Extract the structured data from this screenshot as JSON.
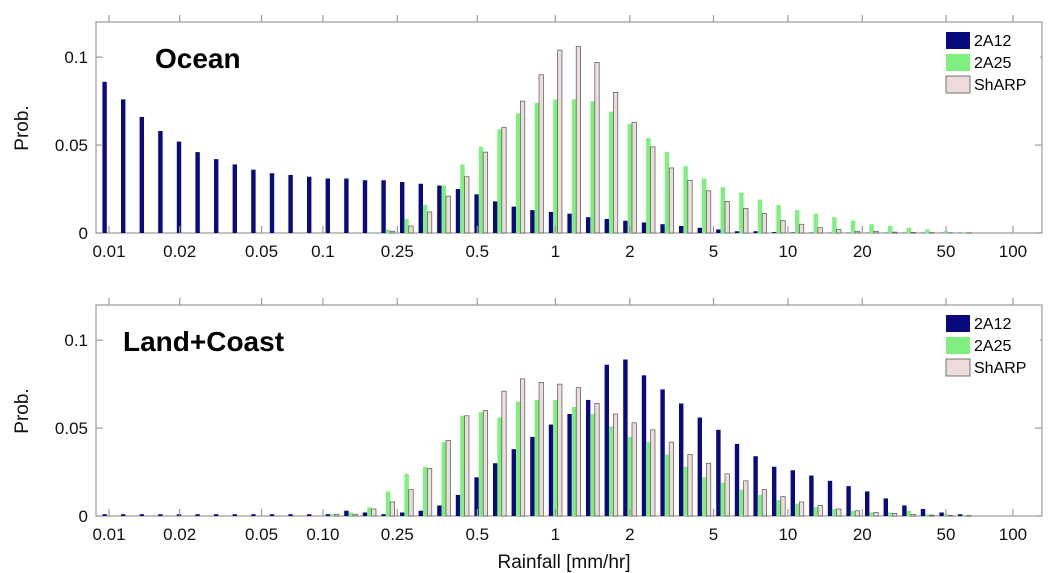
{
  "colors": {
    "2A12": "#0a0a7e",
    "2A25": "#7ff07f",
    "ShARP": "#eedcdc"
  },
  "chart_data": [
    {
      "type": "bar",
      "title": "Ocean",
      "ylabel": "Prob.",
      "xlabel": "",
      "ylim": [
        0,
        0.12
      ],
      "yticks": [
        "0",
        "0.05",
        "0.1"
      ],
      "xtick_labels": [
        "0.01",
        "0.02",
        "0.05",
        "0.1",
        "0.25",
        "0.5",
        "1",
        "2",
        "5",
        "10",
        "20",
        "50",
        "100"
      ],
      "legend": [
        "2A12",
        "2A25",
        "ShARP"
      ],
      "legend_position": "top-right",
      "series": [
        {
          "name": "2A12",
          "values": [
            0.086,
            0.076,
            0.066,
            0.058,
            0.052,
            0.046,
            0.042,
            0.039,
            0.036,
            0.034,
            0.033,
            0.032,
            0.031,
            0.031,
            0.03,
            0.03,
            0.029,
            0.028,
            0.027,
            0.025,
            0.022,
            0.018,
            0.015,
            0.013,
            0.012,
            0.011,
            0.009,
            0.008,
            0.007,
            0.006,
            0.005,
            0.004,
            0.003,
            0.002,
            0.001,
            0.001,
            0.0005,
            0.0003,
            0.0002,
            0.0001,
            0.0001,
            0.0001,
            0.0001,
            0.0001,
            0.0001,
            0.0001,
            0.0001
          ]
        },
        {
          "name": "2A25",
          "values": [
            0,
            0,
            0,
            0,
            0,
            0,
            0,
            0,
            0,
            0,
            0,
            0,
            0,
            0,
            0.0005,
            0.002,
            0.008,
            0.016,
            0.027,
            0.039,
            0.049,
            0.059,
            0.068,
            0.074,
            0.076,
            0.076,
            0.075,
            0.069,
            0.062,
            0.054,
            0.046,
            0.038,
            0.031,
            0.026,
            0.023,
            0.019,
            0.016,
            0.013,
            0.011,
            0.009,
            0.007,
            0.005,
            0.004,
            0.003,
            0.002,
            0.001,
            0.0005
          ]
        },
        {
          "name": "ShARP",
          "values": [
            0,
            0,
            0,
            0,
            0,
            0,
            0,
            0,
            0,
            0,
            0,
            0,
            0,
            0,
            0,
            0.001,
            0.004,
            0.012,
            0.021,
            0.032,
            0.046,
            0.06,
            0.075,
            0.09,
            0.104,
            0.106,
            0.097,
            0.08,
            0.063,
            0.049,
            0.037,
            0.03,
            0.024,
            0.018,
            0.014,
            0.011,
            0.007,
            0.005,
            0.003,
            0.002,
            0.001,
            0.001,
            0.0005,
            0.0003,
            0.0002,
            0.0001,
            0.0001
          ]
        }
      ]
    },
    {
      "type": "bar",
      "title": "Land+Coast",
      "ylabel": "Prob.",
      "xlabel": "Rainfall [mm/hr]",
      "ylim": [
        0,
        0.12
      ],
      "yticks": [
        "0",
        "0.05",
        "0.1"
      ],
      "xtick_labels": [
        "0.01",
        "0.02",
        "0.05",
        "0.10",
        "0.25",
        "0.5",
        "1",
        "2",
        "5",
        "10",
        "20",
        "50",
        "100"
      ],
      "legend": [
        "2A12",
        "2A25",
        "ShARP"
      ],
      "legend_position": "top-right",
      "series": [
        {
          "name": "2A12",
          "values": [
            0.001,
            0.001,
            0.001,
            0.001,
            0.001,
            0.001,
            0.001,
            0.001,
            0.001,
            0.001,
            0.001,
            0.001,
            0.001,
            0.003,
            0.002,
            0.001,
            0.002,
            0.003,
            0.006,
            0.012,
            0.022,
            0.03,
            0.038,
            0.045,
            0.052,
            0.058,
            0.066,
            0.086,
            0.089,
            0.08,
            0.072,
            0.064,
            0.056,
            0.049,
            0.041,
            0.034,
            0.028,
            0.026,
            0.023,
            0.02,
            0.017,
            0.014,
            0.01,
            0.006,
            0.004,
            0.002,
            0.001
          ]
        },
        {
          "name": "2A25",
          "values": [
            0,
            0,
            0,
            0,
            0,
            0,
            0,
            0,
            0,
            0,
            0,
            0,
            0.001,
            0.002,
            0.005,
            0.014,
            0.024,
            0.028,
            0.042,
            0.057,
            0.059,
            0.056,
            0.065,
            0.066,
            0.066,
            0.062,
            0.058,
            0.051,
            0.045,
            0.042,
            0.035,
            0.028,
            0.022,
            0.019,
            0.015,
            0.012,
            0.009,
            0.007,
            0.005,
            0.004,
            0.003,
            0.002,
            0.002,
            0.003,
            0.001,
            0.001,
            0.0005
          ]
        },
        {
          "name": "ShARP",
          "values": [
            0,
            0,
            0,
            0,
            0,
            0,
            0,
            0,
            0,
            0,
            0,
            0,
            0.001,
            0.001,
            0.004,
            0.008,
            0.015,
            0.027,
            0.043,
            0.057,
            0.06,
            0.071,
            0.078,
            0.076,
            0.075,
            0.073,
            0.064,
            0.058,
            0.053,
            0.049,
            0.042,
            0.035,
            0.03,
            0.024,
            0.02,
            0.015,
            0.011,
            0.008,
            0.006,
            0.004,
            0.003,
            0.002,
            0.0015,
            0.001,
            0.0005,
            0.0003,
            0.0002
          ]
        }
      ]
    }
  ]
}
